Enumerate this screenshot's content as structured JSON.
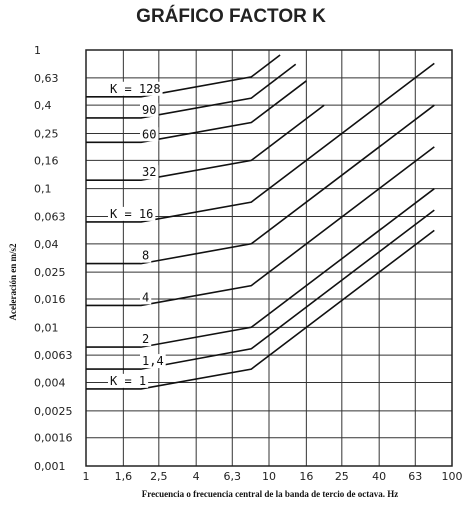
{
  "chart_data": {
    "type": "line",
    "title": "GRÁFICO FACTOR K",
    "xlabel": "Frecuencia o frecuencia central de la banda de tercio de octava. Hz",
    "ylabel": "Aceleración en m/s2",
    "x_scale": "log",
    "y_scale": "log",
    "xlim": [
      1,
      100
    ],
    "ylim": [
      0.001,
      1
    ],
    "grid": true,
    "x_ticks": [
      "1",
      "1,6",
      "2,5",
      "4",
      "6,3",
      "10",
      "16",
      "25",
      "40",
      "63",
      "100"
    ],
    "y_ticks": [
      "0,001",
      "0,0016",
      "0,0025",
      "0,004",
      "0,0063",
      "0,01",
      "0,016",
      "0,025",
      "0,04",
      "0,063",
      "0,1",
      "0,16",
      "0,25",
      "0,4",
      "0,63",
      "1"
    ],
    "series": [
      {
        "name": "K = 1",
        "label": "K = 1",
        "x": [
          1,
          2,
          8,
          80
        ],
        "y": [
          0.0036,
          0.0036,
          0.005,
          0.05
        ]
      },
      {
        "name": "1,4",
        "label": "1,4",
        "x": [
          1,
          2,
          8,
          80
        ],
        "y": [
          0.005,
          0.005,
          0.007,
          0.07
        ]
      },
      {
        "name": "2",
        "label": "2",
        "x": [
          1,
          2,
          8,
          80
        ],
        "y": [
          0.0072,
          0.0072,
          0.01,
          0.1
        ]
      },
      {
        "name": "4",
        "label": "4",
        "x": [
          1,
          2,
          8,
          80
        ],
        "y": [
          0.0144,
          0.0144,
          0.02,
          0.2
        ]
      },
      {
        "name": "8",
        "label": "8",
        "x": [
          1,
          2,
          8,
          80
        ],
        "y": [
          0.0288,
          0.0288,
          0.04,
          0.4
        ]
      },
      {
        "name": "K = 16",
        "label": "K = 16",
        "x": [
          1,
          2,
          8,
          80
        ],
        "y": [
          0.0576,
          0.0576,
          0.08,
          0.8
        ]
      },
      {
        "name": "32",
        "label": "32",
        "x": [
          1,
          2,
          8,
          20
        ],
        "y": [
          0.115,
          0.115,
          0.16,
          0.4
        ]
      },
      {
        "name": "60",
        "label": "60",
        "x": [
          1,
          2,
          8,
          16
        ],
        "y": [
          0.216,
          0.216,
          0.3,
          0.6
        ]
      },
      {
        "name": "90",
        "label": "90",
        "x": [
          1,
          2,
          8,
          14
        ],
        "y": [
          0.324,
          0.324,
          0.45,
          0.79
        ]
      },
      {
        "name": "K = 128",
        "label": "K = 128",
        "x": [
          1,
          2,
          8,
          11.5
        ],
        "y": [
          0.46,
          0.46,
          0.64,
          0.92
        ]
      }
    ]
  }
}
